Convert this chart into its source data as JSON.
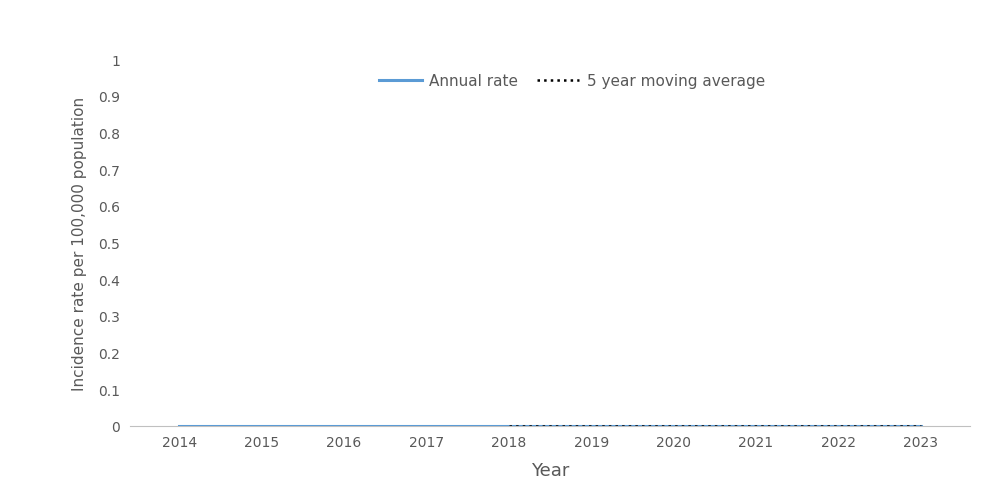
{
  "years": [
    2014,
    2015,
    2016,
    2017,
    2018,
    2019,
    2020,
    2021,
    2022,
    2023
  ],
  "annual_rate": [
    0.0,
    0.0,
    0.0,
    0.0,
    0.0,
    0.0,
    0.0,
    0.0,
    0.0,
    0.0
  ],
  "moving_avg": [
    null,
    null,
    null,
    null,
    0.0,
    0.0,
    0.0,
    0.0,
    0.0,
    0.0
  ],
  "annual_rate_color": "#5B9BD5",
  "moving_avg_color": "#000000",
  "ylabel": "Incidence rate per 100,000 population",
  "xlabel": "Year",
  "ylim": [
    0,
    1
  ],
  "yticks": [
    0,
    0.1,
    0.2,
    0.3,
    0.4,
    0.5,
    0.6,
    0.7,
    0.8,
    0.9,
    1
  ],
  "ytick_labels": [
    "0",
    "0.1",
    "0.2",
    "0.3",
    "0.4",
    "0.5",
    "0.6",
    "0.7",
    "0.8",
    "0.9",
    "1"
  ],
  "legend_annual": "Annual rate",
  "legend_moving": "5 year moving average",
  "background_color": "#ffffff",
  "annual_rate_linewidth": 2.2,
  "moving_avg_linewidth": 1.8,
  "tick_label_color": "#595959",
  "axis_label_color": "#595959"
}
